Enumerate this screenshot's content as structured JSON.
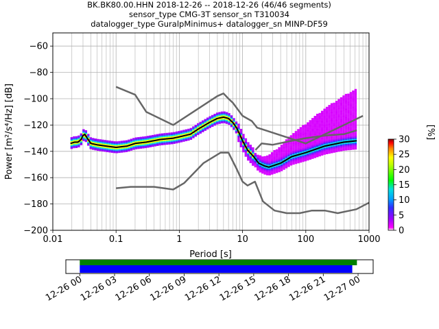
{
  "chart_data": [
    {
      "type": "heatmap",
      "title": [
        "BK.BK80.00.HHN   2018-12-26 -- 2018-12-26  (46/46 segments)",
        "sensor_type CMG-3T sensor_sn T310034",
        "datalogger_type GuralpMinimus+ datalogger_sn MINP-DF59"
      ],
      "xlabel": "Period [s]",
      "ylabel": "Power [m²/s⁴/Hz] [dB]",
      "x_scale": "log",
      "xlim": [
        0.01,
        1000
      ],
      "ylim": [
        -200,
        -50
      ],
      "grid": true,
      "x_ticks": [
        "0.01",
        "0.1",
        "1",
        "10",
        "100",
        "1000"
      ],
      "y_ticks": [
        "−200",
        "−180",
        "−160",
        "−140",
        "−120",
        "−100",
        "−80",
        "−60"
      ],
      "colorbar": {
        "label": "[%]",
        "range": [
          0,
          30
        ],
        "ticks": [
          "0",
          "5",
          "10",
          "15",
          "20",
          "25",
          "30"
        ]
      },
      "series": [
        {
          "color": "#000000",
          "x": [
            0.019,
            0.022,
            0.025,
            0.028,
            0.03,
            0.032,
            0.035,
            0.04,
            0.05,
            0.07,
            0.1,
            0.15,
            0.2,
            0.3,
            0.5,
            0.8,
            1.0,
            1.5,
            2.0,
            3.0,
            4.0,
            5.0,
            6.0,
            7.0,
            8.0,
            9.0,
            10.0,
            12.0,
            15.0,
            18.0,
            22.0,
            26.0,
            30.0,
            40.0,
            60.0,
            100.0,
            200.0,
            400.0,
            640.0
          ],
          "y": [
            -134,
            -133,
            -133,
            -131,
            -128,
            -127,
            -130,
            -134,
            -135,
            -136,
            -137,
            -136,
            -134,
            -133,
            -131,
            -130,
            -129,
            -127,
            -123,
            -118,
            -115,
            -114,
            -115,
            -118,
            -122,
            -127,
            -132,
            -139,
            -144,
            -149,
            -151,
            -152,
            -151,
            -149,
            -144,
            -141,
            -136,
            -133,
            -132
          ]
        },
        {
          "color": "#666666",
          "x": [
            0.1,
            0.2,
            0.3,
            0.8,
            1.0,
            4.0,
            5.0,
            6.0,
            7.0,
            10.0,
            14.0,
            17.0,
            100.0,
            800.0
          ],
          "y": [
            -91,
            -97,
            -110,
            -120,
            -117,
            -98,
            -96,
            -100,
            -103,
            -113,
            -117,
            -122,
            -134,
            -113
          ]
        },
        {
          "color": "#666666",
          "x": [
            0.1,
            0.17,
            0.4,
            0.8,
            1.2,
            2.4,
            4.5,
            6.0,
            8.0,
            10.0,
            12.0,
            15.7,
            21.0,
            32.0,
            50.0,
            80.0,
            125.0,
            200.0,
            320.0,
            630.0,
            1000.0
          ],
          "y": [
            -168,
            -167,
            -167,
            -169,
            -164,
            -149,
            -141,
            -141,
            -153,
            -163,
            -166,
            -163,
            -178,
            -185,
            -187,
            -187,
            -185,
            -185,
            -187,
            -184,
            -179
          ]
        },
        {
          "color": "#666666",
          "x": [
            16.0,
            20.0,
            30.0,
            60.0,
            100.0,
            200.0,
            400.0,
            640.0
          ],
          "y": [
            -139,
            -134,
            -135,
            -132,
            -130,
            -128,
            -127,
            -124
          ]
        }
      ]
    },
    {
      "type": "bar",
      "x_ticks": [
        "12-26 00",
        "12-26 03",
        "12-26 06",
        "12-26 09",
        "12-26 12",
        "12-26 15",
        "12-26 18",
        "12-26 21",
        "12-27 00"
      ],
      "x_range_hours": [
        -1.2,
        25.3
      ],
      "series": [
        {
          "color": "#008000",
          "start_hour": 0.0,
          "end_hour": 23.9
        },
        {
          "color": "#0000ff",
          "start_hour": 0.0,
          "end_hour": 23.5
        }
      ]
    }
  ]
}
